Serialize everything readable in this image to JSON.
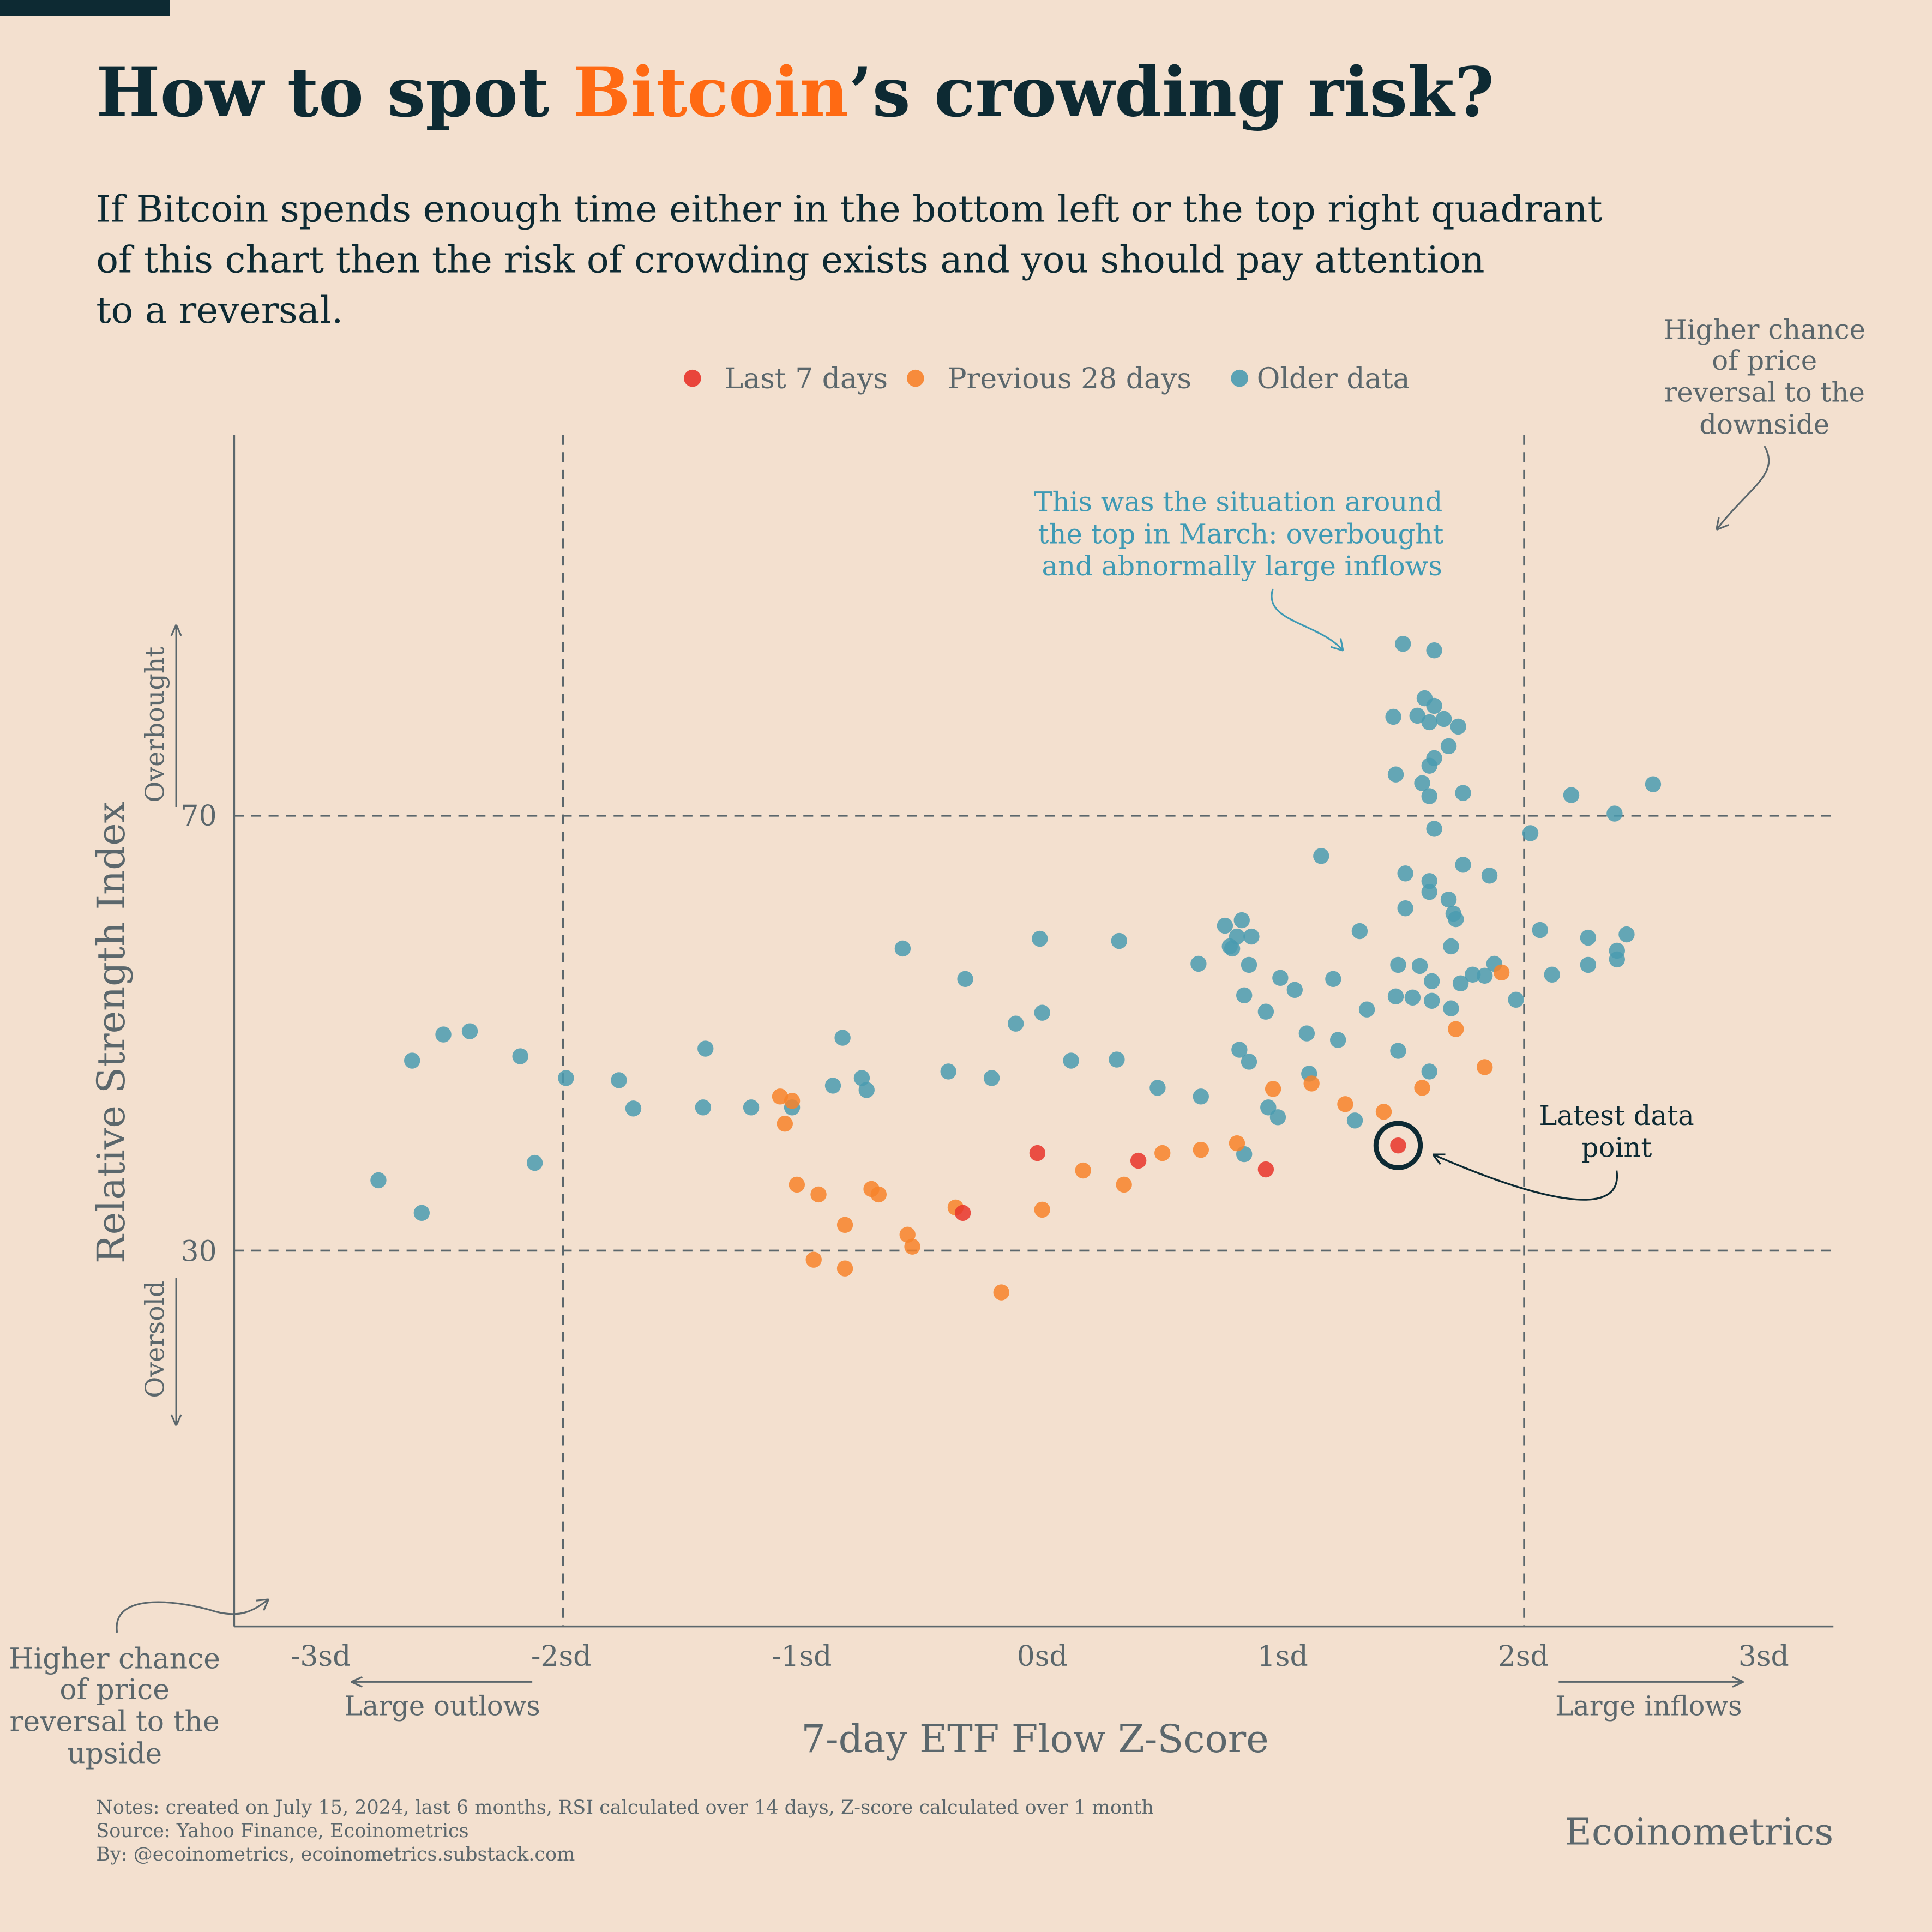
{
  "header": {
    "title_pre": "How to spot ",
    "title_highlight": "Bitcoin",
    "title_post": "’s crowding risk?",
    "subtitle_lines": [
      "If Bitcoin spends enough time either in the bottom left or the top right quadrant",
      "of this chart then the risk of crowding exists and you should pay attention",
      "to a reversal."
    ]
  },
  "colors": {
    "background": "#f3e0cf",
    "title": "#0d2a33",
    "highlight": "#ff6a13",
    "last7": "#e8342a",
    "prev28": "#f7822a",
    "older": "#4a9bb0",
    "annotation": "#3f9ab4",
    "axis": "#5b676c"
  },
  "annotations": {
    "top_right": [
      "Higher chance",
      "of price",
      "reversal to the",
      "downside"
    ],
    "bottom_left": [
      "Higher chance",
      "of price",
      "reversal to the",
      "upside"
    ],
    "march_top": [
      "This was the situation around",
      "the top in March: overbought",
      "and abnormally large inflows"
    ],
    "latest": [
      "Latest data",
      "point"
    ],
    "overbought": "Overbought",
    "oversold": "Oversold",
    "large_outflows": "Large outlows",
    "large_inflows": "Large inflows"
  },
  "footer": {
    "notes": [
      "Notes: created on July 15, 2024, last 6 months, RSI calculated over 14 days, Z-score calculated over 1 month",
      "Source: Yahoo Finance, Ecoinometrics",
      "By: @ecoinometrics, ecoinometrics.substack.com"
    ],
    "brand": "Ecoinometrics"
  },
  "chart_data": {
    "type": "scatter",
    "xlabel": "7-day ETF Flow Z-Score",
    "ylabel": "Relative Strength Index",
    "xlim": [
      -3.36,
      3.29
    ],
    "ylim": [
      -4.5,
      105
    ],
    "x_ticks": [
      -3,
      -2,
      -1,
      0,
      1,
      2,
      3
    ],
    "x_tick_labels": [
      "-3sd",
      "-2sd",
      "-1sd",
      "0sd",
      "1sd",
      "2sd",
      "3sd"
    ],
    "y_ticks": [
      30,
      70
    ],
    "y_tick_labels": [
      "30",
      "70"
    ],
    "reference_lines": {
      "x": [
        -2,
        2
      ],
      "y": [
        30,
        70
      ]
    },
    "grid": false,
    "legend_position": "top-center",
    "highlight_point": [
      1.48,
      39.7
    ],
    "series": [
      {
        "name": "Last 7 days",
        "color": "#e8342a",
        "points": [
          [
            -0.33,
            33.5
          ],
          [
            -0.02,
            39.0
          ],
          [
            0.4,
            38.3
          ],
          [
            0.93,
            37.5
          ],
          [
            1.48,
            39.7
          ]
        ]
      },
      {
        "name": "Previous 28 days",
        "color": "#f7822a",
        "points": [
          [
            -1.09,
            44.2
          ],
          [
            -1.04,
            43.8
          ],
          [
            -1.07,
            41.7
          ],
          [
            -1.02,
            36.1
          ],
          [
            -0.93,
            35.2
          ],
          [
            -0.95,
            29.2
          ],
          [
            -0.82,
            32.4
          ],
          [
            -0.82,
            28.4
          ],
          [
            -0.71,
            35.7
          ],
          [
            -0.68,
            35.2
          ],
          [
            -0.56,
            31.5
          ],
          [
            -0.54,
            30.4
          ],
          [
            -0.36,
            34.0
          ],
          [
            -0.17,
            26.2
          ],
          [
            0.0,
            33.8
          ],
          [
            0.17,
            37.4
          ],
          [
            0.34,
            36.1
          ],
          [
            0.5,
            39.0
          ],
          [
            0.66,
            39.3
          ],
          [
            0.81,
            39.9
          ],
          [
            0.96,
            44.9
          ],
          [
            1.12,
            45.4
          ],
          [
            1.26,
            43.5
          ],
          [
            1.42,
            42.8
          ],
          [
            1.58,
            45.0
          ],
          [
            1.72,
            50.4
          ],
          [
            1.84,
            46.9
          ],
          [
            1.91,
            55.6
          ]
        ]
      },
      {
        "name": "Older data",
        "color": "#4a9bb0",
        "points": [
          [
            -2.76,
            36.5
          ],
          [
            -2.58,
            33.5
          ],
          [
            -2.62,
            47.5
          ],
          [
            -2.49,
            49.9
          ],
          [
            -2.38,
            50.2
          ],
          [
            -2.17,
            47.9
          ],
          [
            -2.11,
            38.1
          ],
          [
            -1.98,
            45.9
          ],
          [
            -1.76,
            45.7
          ],
          [
            -1.7,
            43.1
          ],
          [
            -1.41,
            43.2
          ],
          [
            -1.4,
            48.6
          ],
          [
            -1.21,
            43.2
          ],
          [
            -1.04,
            43.2
          ],
          [
            -0.87,
            45.2
          ],
          [
            -0.83,
            49.6
          ],
          [
            -0.75,
            45.9
          ],
          [
            -0.73,
            44.8
          ],
          [
            -0.58,
            57.8
          ],
          [
            -0.39,
            46.5
          ],
          [
            -0.32,
            55.0
          ],
          [
            -0.21,
            45.9
          ],
          [
            -0.11,
            50.9
          ],
          [
            -0.01,
            58.7
          ],
          [
            0.0,
            51.9
          ],
          [
            0.12,
            47.5
          ],
          [
            0.32,
            58.5
          ],
          [
            0.31,
            47.6
          ],
          [
            0.48,
            45.0
          ],
          [
            0.65,
            56.4
          ],
          [
            0.66,
            44.2
          ],
          [
            0.76,
            59.9
          ],
          [
            0.83,
            60.4
          ],
          [
            0.78,
            58.0
          ],
          [
            0.81,
            58.9
          ],
          [
            0.87,
            58.9
          ],
          [
            0.79,
            57.8
          ],
          [
            0.86,
            56.3
          ],
          [
            0.84,
            53.5
          ],
          [
            0.82,
            48.5
          ],
          [
            0.86,
            47.4
          ],
          [
            0.93,
            52.0
          ],
          [
            0.94,
            43.2
          ],
          [
            0.98,
            42.3
          ],
          [
            0.84,
            38.9
          ],
          [
            0.99,
            55.1
          ],
          [
            1.05,
            54.0
          ],
          [
            1.1,
            50.0
          ],
          [
            1.11,
            46.3
          ],
          [
            1.16,
            66.3
          ],
          [
            1.21,
            55.0
          ],
          [
            1.23,
            49.4
          ],
          [
            1.3,
            42.0
          ],
          [
            1.32,
            59.4
          ],
          [
            1.35,
            52.2
          ],
          [
            1.5,
            85.8
          ],
          [
            1.63,
            85.2
          ],
          [
            1.46,
            79.1
          ],
          [
            1.56,
            79.2
          ],
          [
            1.59,
            80.8
          ],
          [
            1.63,
            80.1
          ],
          [
            1.67,
            78.9
          ],
          [
            1.73,
            78.2
          ],
          [
            1.61,
            78.6
          ],
          [
            1.69,
            76.4
          ],
          [
            1.63,
            75.3
          ],
          [
            1.61,
            74.6
          ],
          [
            1.47,
            73.8
          ],
          [
            1.58,
            73.0
          ],
          [
            1.61,
            71.8
          ],
          [
            1.75,
            72.1
          ],
          [
            1.63,
            68.8
          ],
          [
            1.51,
            64.7
          ],
          [
            1.61,
            64.0
          ],
          [
            1.61,
            63.0
          ],
          [
            1.69,
            62.3
          ],
          [
            1.71,
            61.0
          ],
          [
            1.72,
            60.5
          ],
          [
            1.75,
            65.5
          ],
          [
            1.86,
            64.5
          ],
          [
            1.51,
            61.5
          ],
          [
            1.48,
            56.3
          ],
          [
            1.57,
            56.2
          ],
          [
            1.7,
            58.0
          ],
          [
            1.47,
            53.4
          ],
          [
            1.54,
            53.3
          ],
          [
            1.62,
            54.8
          ],
          [
            1.74,
            54.6
          ],
          [
            1.79,
            55.4
          ],
          [
            1.84,
            55.3
          ],
          [
            1.88,
            56.4
          ],
          [
            1.62,
            53.0
          ],
          [
            1.7,
            52.3
          ],
          [
            1.48,
            48.4
          ],
          [
            1.61,
            46.5
          ],
          [
            1.97,
            53.1
          ],
          [
            2.03,
            68.4
          ],
          [
            2.07,
            59.5
          ],
          [
            2.12,
            55.4
          ],
          [
            2.2,
            71.9
          ],
          [
            2.27,
            58.8
          ],
          [
            2.27,
            56.3
          ],
          [
            2.38,
            70.2
          ],
          [
            2.39,
            57.6
          ],
          [
            2.39,
            56.8
          ],
          [
            2.43,
            59.1
          ],
          [
            2.54,
            72.9
          ]
        ]
      }
    ]
  }
}
